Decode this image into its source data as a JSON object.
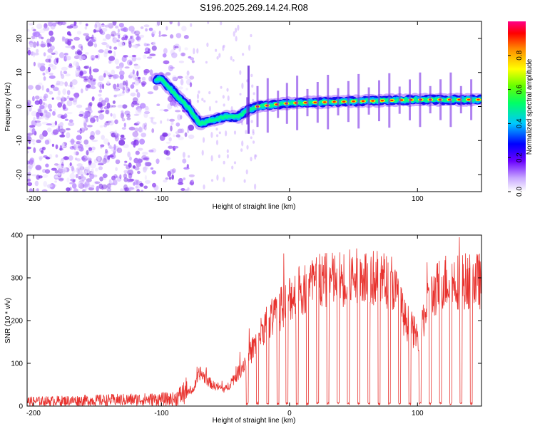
{
  "title": "S196.2025.269.14.24.R08",
  "chart_data": [
    {
      "type": "heatmap",
      "xlabel": "Height of straight line (km)",
      "ylabel": "Frequency (Hz)",
      "xlim": [
        -205,
        150
      ],
      "ylim": [
        -25,
        25
      ],
      "xticks": [
        -200,
        -100,
        0,
        100
      ],
      "yticks": [
        -20,
        -10,
        0,
        10,
        20
      ],
      "colorbar": {
        "label": "Normalized spectral amplitude",
        "range": [
          0,
          1
        ],
        "ticks": [
          "0.0",
          "0.2",
          "0.4",
          "0.6",
          "0.8"
        ]
      },
      "ridge": {
        "x": [
          -100,
          -90,
          -80,
          -70,
          -60,
          -50,
          -40,
          -32,
          -25,
          0,
          50,
          100,
          150
        ],
        "y": [
          8,
          4,
          0,
          -5,
          -4,
          -3,
          -3,
          -1,
          0,
          1,
          1.5,
          2,
          2
        ]
      },
      "noise_region_x": [
        -205,
        -85
      ],
      "grid": false
    },
    {
      "type": "line",
      "xlabel": "Height of straight line (km)",
      "ylabel": "SNR (10 * v/v)",
      "xlim": [
        -205,
        150
      ],
      "ylim": [
        0,
        400
      ],
      "xticks": [
        -200,
        -100,
        0,
        100
      ],
      "yticks": [
        0,
        100,
        200,
        300,
        400
      ],
      "color": "#e8322e",
      "envelope": {
        "x": [
          -205,
          -90,
          -75,
          -70,
          -60,
          -50,
          -40,
          -30,
          -20,
          -10,
          0,
          10,
          20,
          40,
          60,
          80,
          90,
          100,
          110,
          120,
          150
        ],
        "y": [
          10,
          15,
          40,
          80,
          50,
          40,
          80,
          130,
          190,
          220,
          260,
          280,
          295,
          305,
          310,
          300,
          210,
          165,
          260,
          300,
          300
        ]
      },
      "dropouts_x": [
        -33,
        -25,
        -17,
        -9,
        -2,
        6,
        14,
        22,
        30,
        38,
        46,
        54,
        62,
        70,
        78,
        86,
        94,
        102,
        110,
        118,
        126,
        134,
        142
      ],
      "grid": false
    }
  ]
}
